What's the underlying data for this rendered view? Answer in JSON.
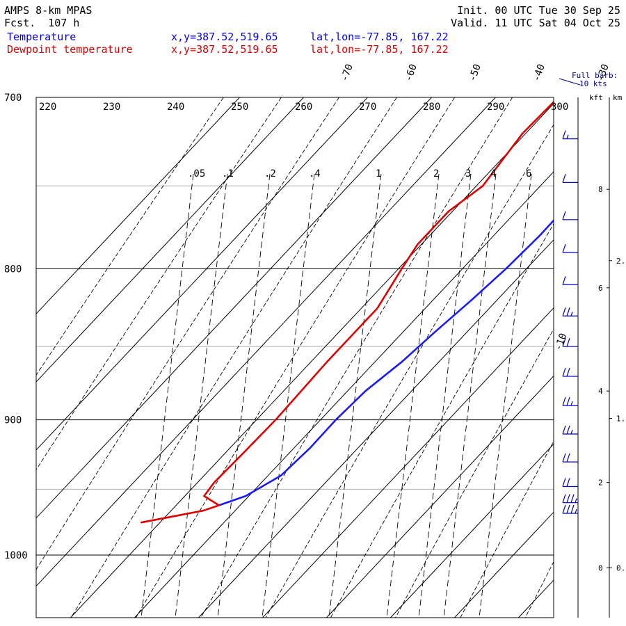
{
  "header": {
    "model": "AMPS 8-km MPAS",
    "fcst_label": "Fcst.",
    "fcst_value": "107 h",
    "init": "Init. 00 UTC Tue 30 Sep 25",
    "valid": "Valid. 11 UTC Sat 04 Oct 25",
    "temp_label": "Temperature",
    "dew_label": "Dewpoint temperature",
    "temp_xy": "x,y=387.52,519.65",
    "temp_latlon": "lat,lon=-77.85, 167.22",
    "dew_xy": "x,y=387.52,519.65",
    "dew_latlon": "lat,lon=-77.85, 167.22"
  },
  "legend_barb": {
    "line1": "Full barb:",
    "line2": "10 kts"
  },
  "height_axis": {
    "kft_label": "kft",
    "km_label": "km"
  },
  "colors": {
    "temperature": "#1a1aff",
    "dewpoint": "#e00000",
    "text_blue": "#0000ee",
    "text_red": "#dd0000"
  },
  "chart_data": {
    "type": "line",
    "title": "Skew-T log-P sounding",
    "ylabel": "Pressure (hPa)",
    "xlabel": "Temperature (C)",
    "pressure_range": [
      700,
      1050
    ],
    "pressure_ticks": [
      700,
      800,
      900,
      1000
    ],
    "minor_pressure_lines": [
      750,
      850,
      950
    ],
    "temp_ticks": [
      -70,
      -60,
      -50,
      -40,
      -30,
      -20,
      -10,
      0
    ],
    "theta_labels": [
      220,
      230,
      240,
      250,
      260,
      270,
      280,
      290,
      300
    ],
    "mixing_ratio_labels": [
      ".05",
      ".1",
      ".2",
      ".4",
      "1",
      "2",
      "3",
      "4",
      "6"
    ],
    "isotherm_tick_label": "-10",
    "series": [
      {
        "name": "Temperature",
        "points": [
          [
            700,
            -22.8
          ],
          [
            740,
            -23.0
          ],
          [
            780,
            -22.8
          ],
          [
            800,
            -23.2
          ],
          [
            820,
            -24.0
          ],
          [
            840,
            -25.0
          ],
          [
            860,
            -25.8
          ],
          [
            880,
            -27.2
          ],
          [
            900,
            -27.6
          ],
          [
            920,
            -27.5
          ],
          [
            940,
            -28.0
          ],
          [
            955,
            -30.5
          ],
          [
            962,
            -33.3
          ]
        ]
      },
      {
        "name": "Dewpoint temperature",
        "points": [
          [
            700,
            -40.2
          ],
          [
            720,
            -40.5
          ],
          [
            750,
            -39.0
          ],
          [
            765,
            -40.6
          ],
          [
            785,
            -40.6
          ],
          [
            800,
            -39.5
          ],
          [
            825,
            -37.5
          ],
          [
            860,
            -37.5
          ],
          [
            900,
            -37.0
          ],
          [
            925,
            -37.2
          ],
          [
            945,
            -37.4
          ],
          [
            955,
            -37.0
          ],
          [
            962,
            -33.3
          ],
          [
            966,
            -35.0
          ],
          [
            975,
            -43.0
          ]
        ]
      }
    ],
    "wind_profile": [
      {
        "p": 723,
        "speed_kt": 7
      },
      {
        "p": 748,
        "speed_kt": 10
      },
      {
        "p": 770,
        "speed_kt": 10
      },
      {
        "p": 790,
        "speed_kt": 10
      },
      {
        "p": 810,
        "speed_kt": 10
      },
      {
        "p": 830,
        "speed_kt": 15
      },
      {
        "p": 850,
        "speed_kt": 20
      },
      {
        "p": 870,
        "speed_kt": 20
      },
      {
        "p": 890,
        "speed_kt": 15
      },
      {
        "p": 910,
        "speed_kt": 15
      },
      {
        "p": 930,
        "speed_kt": 20
      },
      {
        "p": 948,
        "speed_kt": 20
      },
      {
        "p": 960,
        "speed_kt": 25
      },
      {
        "p": 968,
        "speed_kt": 25
      }
    ],
    "height_kft_ticks": [
      {
        "label": "0",
        "p": 1010
      },
      {
        "label": "2",
        "p": 945
      },
      {
        "label": "4",
        "p": 880
      },
      {
        "label": "6",
        "p": 812
      },
      {
        "label": "8",
        "p": 752
      }
    ],
    "height_km_ticks": [
      {
        "label": "0.",
        "p": 1010
      },
      {
        "label": "1.",
        "p": 899
      },
      {
        "label": "2.",
        "p": 795
      }
    ]
  }
}
